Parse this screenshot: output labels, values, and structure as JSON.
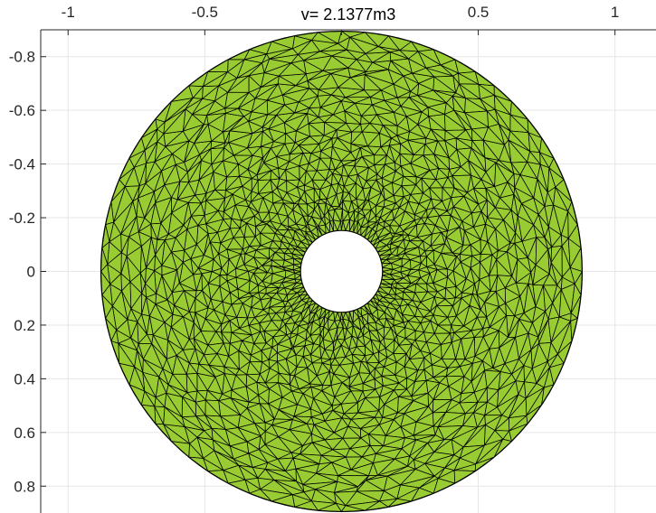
{
  "chart_data": {
    "type": "scatter",
    "title": "v= 2.1377m3",
    "xlabel": "",
    "ylabel": "",
    "xlim": [
      -1.1,
      1.15
    ],
    "ylim": [
      0.9,
      -0.9
    ],
    "y_reversed": true,
    "grid": true,
    "x_ticks": [
      -1,
      -0.5,
      0,
      0.5,
      1
    ],
    "x_tick_labels": [
      "-1",
      "-0.5",
      "",
      "0.5",
      "1"
    ],
    "y_ticks": [
      -0.8,
      -0.6,
      -0.4,
      -0.2,
      0,
      0.2,
      0.4,
      0.6,
      0.8
    ],
    "y_tick_labels": [
      "-0.8",
      "-0.6",
      "-0.4",
      "-0.2",
      "0",
      "0.2",
      "0.4",
      "0.6",
      "0.8"
    ],
    "shape": {
      "kind": "annulus-triangulated-surface",
      "center": [
        0,
        0
      ],
      "outer_radius": 0.88,
      "inner_radius": 0.15,
      "face_color": "#99cc33",
      "edge_color": "#000000"
    }
  }
}
